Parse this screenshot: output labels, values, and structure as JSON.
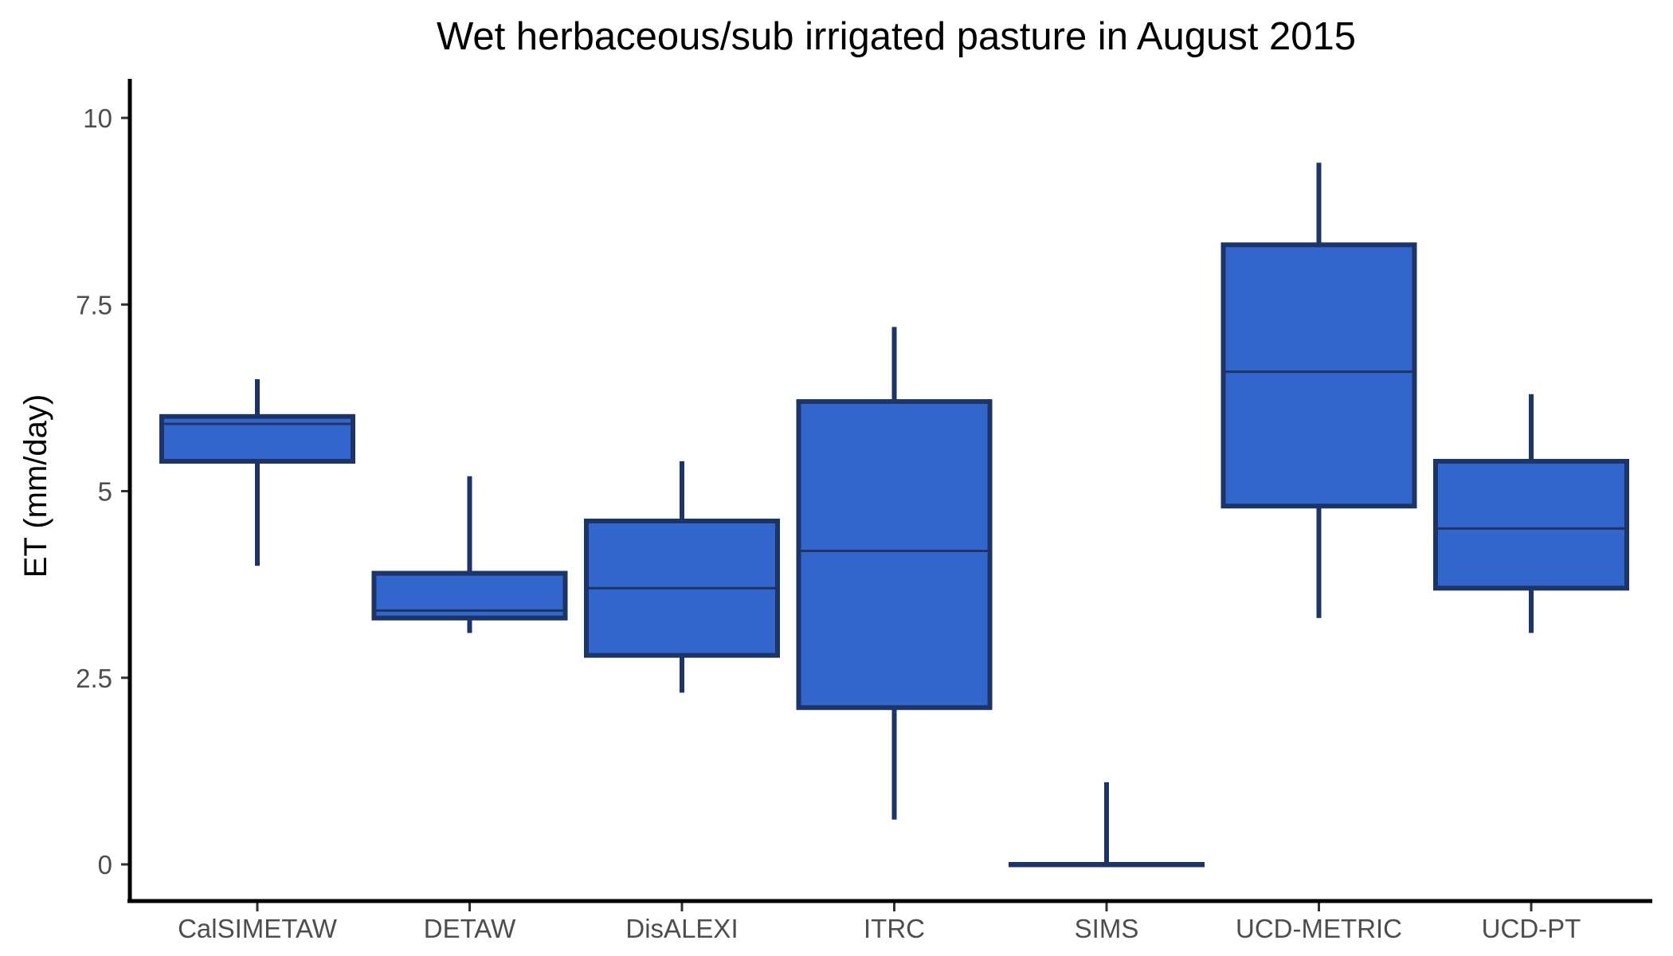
{
  "chart_data": {
    "type": "boxplot",
    "title": "Wet herbaceous/sub irrigated pasture in August 2015",
    "xlabel": "",
    "ylabel": "ET (mm/day)",
    "ylim": [
      -0.5,
      10.5
    ],
    "yticks": [
      0,
      2.5,
      5,
      7.5,
      10
    ],
    "ytick_labels": [
      "0",
      "2.5",
      "5",
      "7.5",
      "10"
    ],
    "categories": [
      "CalSIMETAW",
      "DETAW",
      "DisALEXI",
      "ITRC",
      "SIMS",
      "UCD-METRIC",
      "UCD-PT"
    ],
    "boxes": [
      {
        "category": "CalSIMETAW",
        "whisker_low": 4.0,
        "q1": 5.4,
        "median": 5.9,
        "q3": 6.0,
        "whisker_high": 6.5
      },
      {
        "category": "DETAW",
        "whisker_low": 3.1,
        "q1": 3.3,
        "median": 3.4,
        "q3": 3.9,
        "whisker_high": 5.2
      },
      {
        "category": "DisALEXI",
        "whisker_low": 2.3,
        "q1": 2.8,
        "median": 3.7,
        "q3": 4.6,
        "whisker_high": 5.4
      },
      {
        "category": "ITRC",
        "whisker_low": 0.6,
        "q1": 2.1,
        "median": 4.2,
        "q3": 6.2,
        "whisker_high": 7.2
      },
      {
        "category": "SIMS",
        "whisker_low": 0.0,
        "q1": 0.0,
        "median": 0.0,
        "q3": 0.0,
        "whisker_high": 1.1
      },
      {
        "category": "UCD-METRIC",
        "whisker_low": 3.3,
        "q1": 4.8,
        "median": 6.6,
        "q3": 8.3,
        "whisker_high": 9.4
      },
      {
        "category": "UCD-PT",
        "whisker_low": 3.1,
        "q1": 3.7,
        "median": 4.5,
        "q3": 5.4,
        "whisker_high": 6.3
      }
    ],
    "colors": {
      "fill": "#3366cc",
      "outline": "#1c3566"
    },
    "grid": false,
    "legend": "none"
  }
}
